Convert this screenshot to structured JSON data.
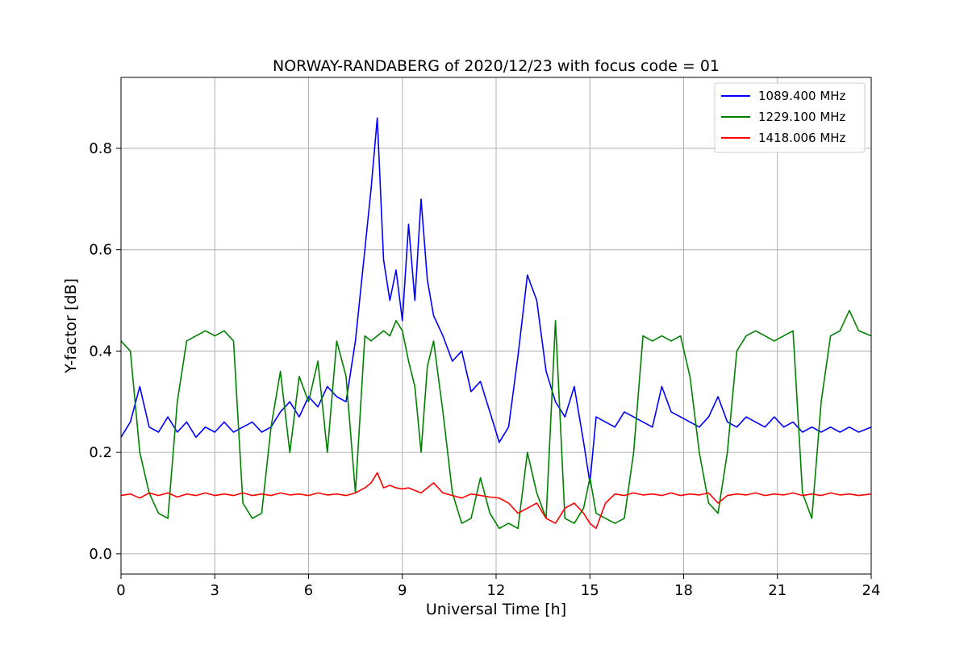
{
  "chart_data": {
    "type": "line",
    "title": "NORWAY-RANDABERG of 2020/12/23 with focus code = 01",
    "xlabel": "Universal Time [h]",
    "ylabel": "Y-factor [dB]",
    "xlim": [
      0,
      24
    ],
    "ylim": [
      -0.04,
      0.94
    ],
    "x_ticks": [
      0,
      3,
      6,
      9,
      12,
      15,
      18,
      21,
      24
    ],
    "y_ticks": [
      0.0,
      0.2,
      0.4,
      0.6,
      0.8
    ],
    "y_tick_labels": [
      "0.0",
      "0.2",
      "0.4",
      "0.6",
      "0.8"
    ],
    "grid": true,
    "legend_position": "top-right",
    "series": [
      {
        "name": "1089.400 MHz",
        "color": "#0000ff",
        "x": [
          0,
          0.3,
          0.6,
          0.9,
          1.2,
          1.5,
          1.8,
          2.1,
          2.4,
          2.7,
          3.0,
          3.3,
          3.6,
          3.9,
          4.2,
          4.5,
          4.8,
          5.1,
          5.4,
          5.7,
          6.0,
          6.3,
          6.6,
          6.9,
          7.2,
          7.5,
          7.8,
          8.0,
          8.2,
          8.4,
          8.6,
          8.8,
          9.0,
          9.2,
          9.4,
          9.6,
          9.8,
          10.0,
          10.3,
          10.6,
          10.9,
          11.2,
          11.5,
          11.8,
          12.1,
          12.4,
          12.7,
          13.0,
          13.3,
          13.6,
          13.9,
          14.2,
          14.5,
          14.8,
          15.0,
          15.2,
          15.5,
          15.8,
          16.1,
          16.4,
          16.7,
          17.0,
          17.3,
          17.6,
          17.9,
          18.2,
          18.5,
          18.8,
          19.1,
          19.4,
          19.7,
          20.0,
          20.3,
          20.6,
          20.9,
          21.2,
          21.5,
          21.8,
          22.1,
          22.4,
          22.7,
          23.0,
          23.3,
          23.6,
          24.0
        ],
        "y": [
          0.23,
          0.26,
          0.33,
          0.25,
          0.24,
          0.27,
          0.24,
          0.26,
          0.23,
          0.25,
          0.24,
          0.26,
          0.24,
          0.25,
          0.26,
          0.24,
          0.25,
          0.28,
          0.3,
          0.27,
          0.31,
          0.29,
          0.33,
          0.31,
          0.3,
          0.42,
          0.6,
          0.72,
          0.86,
          0.58,
          0.5,
          0.56,
          0.46,
          0.65,
          0.5,
          0.7,
          0.54,
          0.47,
          0.43,
          0.38,
          0.4,
          0.32,
          0.34,
          0.28,
          0.22,
          0.25,
          0.39,
          0.55,
          0.5,
          0.36,
          0.3,
          0.27,
          0.33,
          0.22,
          0.14,
          0.27,
          0.26,
          0.25,
          0.28,
          0.27,
          0.26,
          0.25,
          0.33,
          0.28,
          0.27,
          0.26,
          0.25,
          0.27,
          0.31,
          0.26,
          0.25,
          0.27,
          0.26,
          0.25,
          0.27,
          0.25,
          0.26,
          0.24,
          0.25,
          0.24,
          0.25,
          0.24,
          0.25,
          0.24,
          0.25
        ]
      },
      {
        "name": "1229.100 MHz",
        "color": "#008000",
        "x": [
          0,
          0.3,
          0.6,
          0.9,
          1.2,
          1.5,
          1.8,
          2.1,
          2.4,
          2.7,
          3.0,
          3.3,
          3.6,
          3.9,
          4.2,
          4.5,
          4.8,
          5.1,
          5.4,
          5.7,
          6.0,
          6.3,
          6.6,
          6.9,
          7.2,
          7.5,
          7.8,
          8.0,
          8.2,
          8.4,
          8.6,
          8.8,
          9.0,
          9.2,
          9.4,
          9.6,
          9.8,
          10.0,
          10.3,
          10.6,
          10.9,
          11.2,
          11.5,
          11.8,
          12.1,
          12.4,
          12.7,
          13.0,
          13.3,
          13.6,
          13.9,
          14.2,
          14.5,
          14.8,
          15.0,
          15.2,
          15.5,
          15.8,
          16.1,
          16.4,
          16.7,
          17.0,
          17.3,
          17.6,
          17.9,
          18.2,
          18.5,
          18.8,
          19.1,
          19.4,
          19.7,
          20.0,
          20.3,
          20.6,
          20.9,
          21.2,
          21.5,
          21.8,
          22.1,
          22.4,
          22.7,
          23.0,
          23.3,
          23.6,
          24.0
        ],
        "y": [
          0.42,
          0.4,
          0.2,
          0.12,
          0.08,
          0.07,
          0.3,
          0.42,
          0.43,
          0.44,
          0.43,
          0.44,
          0.42,
          0.1,
          0.07,
          0.08,
          0.25,
          0.36,
          0.2,
          0.35,
          0.3,
          0.38,
          0.2,
          0.42,
          0.35,
          0.12,
          0.43,
          0.42,
          0.43,
          0.44,
          0.43,
          0.46,
          0.44,
          0.38,
          0.33,
          0.2,
          0.37,
          0.42,
          0.28,
          0.12,
          0.06,
          0.07,
          0.15,
          0.08,
          0.05,
          0.06,
          0.05,
          0.2,
          0.12,
          0.07,
          0.46,
          0.07,
          0.06,
          0.09,
          0.15,
          0.08,
          0.07,
          0.06,
          0.07,
          0.2,
          0.43,
          0.42,
          0.43,
          0.42,
          0.43,
          0.35,
          0.2,
          0.1,
          0.08,
          0.2,
          0.4,
          0.43,
          0.44,
          0.43,
          0.42,
          0.43,
          0.44,
          0.12,
          0.07,
          0.3,
          0.43,
          0.44,
          0.48,
          0.44,
          0.43
        ]
      },
      {
        "name": "1418.006 MHz",
        "color": "#ff0000",
        "x": [
          0,
          0.3,
          0.6,
          0.9,
          1.2,
          1.5,
          1.8,
          2.1,
          2.4,
          2.7,
          3.0,
          3.3,
          3.6,
          3.9,
          4.2,
          4.5,
          4.8,
          5.1,
          5.4,
          5.7,
          6.0,
          6.3,
          6.6,
          6.9,
          7.2,
          7.5,
          7.8,
          8.0,
          8.2,
          8.4,
          8.6,
          8.8,
          9.0,
          9.2,
          9.4,
          9.6,
          9.8,
          10.0,
          10.3,
          10.6,
          10.9,
          11.2,
          11.5,
          11.8,
          12.1,
          12.4,
          12.7,
          13.0,
          13.3,
          13.6,
          13.9,
          14.2,
          14.5,
          14.8,
          15.0,
          15.2,
          15.5,
          15.8,
          16.1,
          16.4,
          16.7,
          17.0,
          17.3,
          17.6,
          17.9,
          18.2,
          18.5,
          18.8,
          19.1,
          19.4,
          19.7,
          20.0,
          20.3,
          20.6,
          20.9,
          21.2,
          21.5,
          21.8,
          22.1,
          22.4,
          22.7,
          23.0,
          23.3,
          23.6,
          24.0
        ],
        "y": [
          0.115,
          0.118,
          0.11,
          0.12,
          0.115,
          0.12,
          0.112,
          0.118,
          0.115,
          0.12,
          0.115,
          0.118,
          0.115,
          0.12,
          0.115,
          0.118,
          0.115,
          0.12,
          0.116,
          0.118,
          0.115,
          0.12,
          0.116,
          0.118,
          0.115,
          0.12,
          0.13,
          0.14,
          0.16,
          0.13,
          0.135,
          0.13,
          0.128,
          0.13,
          0.125,
          0.12,
          0.13,
          0.14,
          0.12,
          0.115,
          0.11,
          0.118,
          0.115,
          0.112,
          0.11,
          0.1,
          0.08,
          0.09,
          0.1,
          0.07,
          0.06,
          0.09,
          0.1,
          0.08,
          0.06,
          0.05,
          0.1,
          0.118,
          0.115,
          0.12,
          0.116,
          0.118,
          0.115,
          0.12,
          0.115,
          0.118,
          0.116,
          0.12,
          0.1,
          0.115,
          0.118,
          0.116,
          0.12,
          0.115,
          0.118,
          0.116,
          0.12,
          0.115,
          0.118,
          0.115,
          0.12,
          0.116,
          0.118,
          0.115,
          0.118
        ]
      }
    ]
  }
}
